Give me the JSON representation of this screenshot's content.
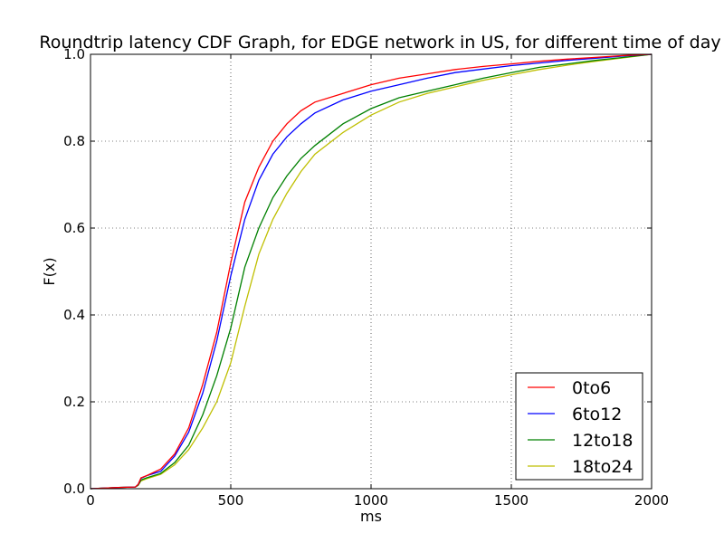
{
  "chart_data": {
    "type": "line",
    "title": "Roundtrip latency CDF Graph, for EDGE network in US, for different time of day",
    "xlabel": "ms",
    "ylabel": "F(x)",
    "xlim": [
      0,
      2000
    ],
    "ylim": [
      0.0,
      1.0
    ],
    "x_ticks": [
      "0",
      "500",
      "1000",
      "1500",
      "2000"
    ],
    "y_ticks": [
      "0.0",
      "0.2",
      "0.4",
      "0.6",
      "0.8",
      "1.0"
    ],
    "grid": true,
    "legend_position": "lower-right",
    "series": [
      {
        "name": "0to6",
        "color": "#ff0000",
        "x": [
          0,
          100,
          160,
          170,
          180,
          200,
          250,
          300,
          350,
          400,
          450,
          500,
          550,
          600,
          650,
          700,
          750,
          800,
          900,
          1000,
          1100,
          1200,
          1300,
          1400,
          1500,
          1600,
          1700,
          1800,
          1900,
          2000
        ],
        "y": [
          0.0,
          0.003,
          0.004,
          0.01,
          0.025,
          0.03,
          0.045,
          0.08,
          0.14,
          0.24,
          0.36,
          0.52,
          0.66,
          0.74,
          0.8,
          0.84,
          0.87,
          0.89,
          0.91,
          0.93,
          0.945,
          0.955,
          0.965,
          0.972,
          0.978,
          0.984,
          0.989,
          0.993,
          0.997,
          1.0
        ]
      },
      {
        "name": "6to12",
        "color": "#0000ff",
        "x": [
          0,
          100,
          160,
          170,
          180,
          200,
          250,
          300,
          350,
          400,
          450,
          500,
          550,
          600,
          650,
          700,
          750,
          800,
          900,
          1000,
          1100,
          1200,
          1300,
          1400,
          1500,
          1600,
          1700,
          1800,
          1900,
          2000
        ],
        "y": [
          0.0,
          0.003,
          0.004,
          0.01,
          0.024,
          0.03,
          0.04,
          0.075,
          0.13,
          0.22,
          0.34,
          0.49,
          0.62,
          0.71,
          0.77,
          0.81,
          0.84,
          0.865,
          0.895,
          0.915,
          0.93,
          0.945,
          0.958,
          0.966,
          0.974,
          0.98,
          0.986,
          0.991,
          0.996,
          1.0
        ]
      },
      {
        "name": "12to18",
        "color": "#008000",
        "x": [
          0,
          100,
          160,
          170,
          180,
          200,
          250,
          300,
          350,
          400,
          450,
          500,
          550,
          600,
          650,
          700,
          750,
          800,
          900,
          1000,
          1100,
          1200,
          1300,
          1400,
          1500,
          1600,
          1700,
          1800,
          1900,
          2000
        ],
        "y": [
          0.0,
          0.003,
          0.004,
          0.008,
          0.02,
          0.025,
          0.035,
          0.06,
          0.1,
          0.17,
          0.26,
          0.37,
          0.51,
          0.6,
          0.67,
          0.72,
          0.76,
          0.79,
          0.84,
          0.875,
          0.9,
          0.915,
          0.93,
          0.945,
          0.958,
          0.97,
          0.978,
          0.986,
          0.993,
          1.0
        ]
      },
      {
        "name": "18to24",
        "color": "#bfbf00",
        "x": [
          0,
          100,
          160,
          170,
          180,
          200,
          250,
          300,
          350,
          400,
          450,
          500,
          550,
          600,
          650,
          700,
          750,
          800,
          900,
          1000,
          1100,
          1200,
          1300,
          1400,
          1500,
          1600,
          1700,
          1800,
          1900,
          2000
        ],
        "y": [
          0.0,
          0.003,
          0.004,
          0.008,
          0.018,
          0.023,
          0.033,
          0.055,
          0.09,
          0.14,
          0.2,
          0.29,
          0.42,
          0.54,
          0.62,
          0.68,
          0.73,
          0.77,
          0.82,
          0.86,
          0.89,
          0.91,
          0.925,
          0.94,
          0.953,
          0.965,
          0.975,
          0.984,
          0.992,
          1.0
        ]
      }
    ]
  }
}
